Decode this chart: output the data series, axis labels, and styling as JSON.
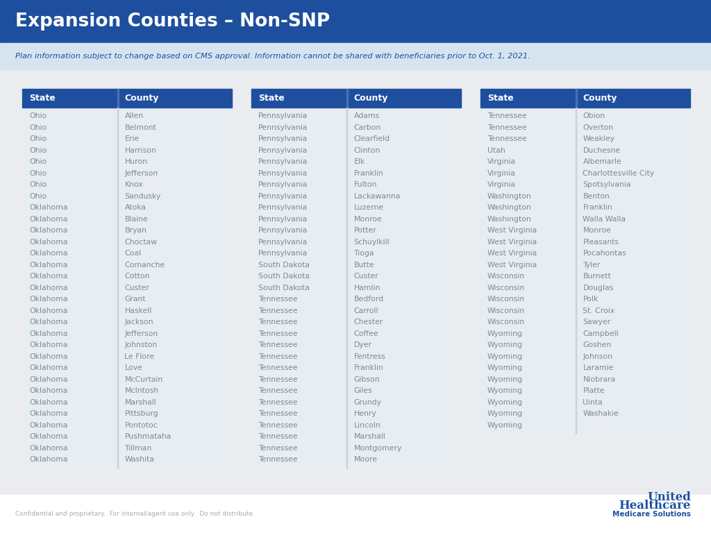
{
  "title": "Expansion Counties – Non-SNP",
  "subtitle": "Plan information subject to change based on CMS approval. Information cannot be shared with beneficiaries prior to Oct. 1, 2021.",
  "header_bg": "#1e4f9f",
  "header_text": "#ffffff",
  "subtitle_bg": "#d6e4f0",
  "subtitle_text": "#1e4f9f",
  "page_bg": "#eaecf0",
  "table_bg": "#e8edf2",
  "table_header_bg": "#1e4f9f",
  "table_header_text": "#ffffff",
  "table_text": "#7a8a9a",
  "footer_text": "Confidential and proprietary.  For internal/agent use only.  Do not distribute.",
  "footer_color": "#aaaaaa",
  "logo_line1": "United",
  "logo_line2": "Healthcare",
  "logo_line3": "Medicare Solutions",
  "col1": {
    "states": [
      "Ohio",
      "Ohio",
      "Ohio",
      "Ohio",
      "Ohio",
      "Ohio",
      "Ohio",
      "Ohio",
      "Oklahoma",
      "Oklahoma",
      "Oklahoma",
      "Oklahoma",
      "Oklahoma",
      "Oklahoma",
      "Oklahoma",
      "Oklahoma",
      "Oklahoma",
      "Oklahoma",
      "Oklahoma",
      "Oklahoma",
      "Oklahoma",
      "Oklahoma",
      "Oklahoma",
      "Oklahoma",
      "Oklahoma",
      "Oklahoma",
      "Oklahoma",
      "Oklahoma",
      "Oklahoma",
      "Oklahoma",
      "Oklahoma"
    ],
    "counties": [
      "Allen",
      "Belmont",
      "Erie",
      "Harrison",
      "Huron",
      "Jefferson",
      "Knox",
      "Sandusky",
      "Atoka",
      "Blaine",
      "Bryan",
      "Choctaw",
      "Coal",
      "Comanche",
      "Cotton",
      "Custer",
      "Grant",
      "Haskell",
      "Jackson",
      "Jefferson",
      "Johnston",
      "Le Flore",
      "Love",
      "McCurtain",
      "McIntosh",
      "Marshall",
      "Pittsburg",
      "Pontotoc",
      "Pushmataha",
      "Tillman",
      "Washita"
    ]
  },
  "col2": {
    "states": [
      "Pennsylvania",
      "Pennsylvania",
      "Pennsylvania",
      "Pennsylvania",
      "Pennsylvania",
      "Pennsylvania",
      "Pennsylvania",
      "Pennsylvania",
      "Pennsylvania",
      "Pennsylvania",
      "Pennsylvania",
      "Pennsylvania",
      "Pennsylvania",
      "South Dakota",
      "South Dakota",
      "South Dakota",
      "Tennessee",
      "Tennessee",
      "Tennessee",
      "Tennessee",
      "Tennessee",
      "Tennessee",
      "Tennessee",
      "Tennessee",
      "Tennessee",
      "Tennessee",
      "Tennessee",
      "Tennessee",
      "Tennessee",
      "Tennessee",
      "Tennessee"
    ],
    "counties": [
      "Adams",
      "Carbon",
      "Clearfield",
      "Clinton",
      "Elk",
      "Franklin",
      "Fulton",
      "Lackawanna",
      "Luzerne",
      "Monroe",
      "Potter",
      "Schuylkill",
      "Tioga",
      "Butte",
      "Custer",
      "Hamlin",
      "Bedford",
      "Carroll",
      "Chester",
      "Coffee",
      "Dyer",
      "Fentress",
      "Franklin",
      "Gibson",
      "Giles",
      "Grundy",
      "Henry",
      "Lincoln",
      "Marshall",
      "Montgomery",
      "Moore"
    ]
  },
  "col3": {
    "states": [
      "Tennessee",
      "Tennessee",
      "Tennessee",
      "Utah",
      "Virginia",
      "Virginia",
      "Virginia",
      "Washington",
      "Washington",
      "Washington",
      "West Virginia",
      "West Virginia",
      "West Virginia",
      "West Virginia",
      "Wisconsin",
      "Wisconsin",
      "Wisconsin",
      "Wisconsin",
      "Wisconsin",
      "Wyoming",
      "Wyoming",
      "Wyoming",
      "Wyoming",
      "Wyoming",
      "Wyoming",
      "Wyoming",
      "Wyoming",
      "Wyoming"
    ],
    "counties": [
      "Obion",
      "Overton",
      "Weakley",
      "Duchesne",
      "Albemarle",
      "Charlottesville City",
      "Spotsylvania",
      "Benton",
      "Franklin",
      "Walla Walla",
      "Monroe",
      "Pleasants",
      "Pocahontas",
      "Tyler",
      "Burnett",
      "Douglas",
      "Polk",
      "St. Croix",
      "Sawyer",
      "Campbell",
      "Goshen",
      "Johnson",
      "Laramie",
      "Niobrara",
      "Platte",
      "Uinta",
      "Washakie",
      ""
    ]
  }
}
